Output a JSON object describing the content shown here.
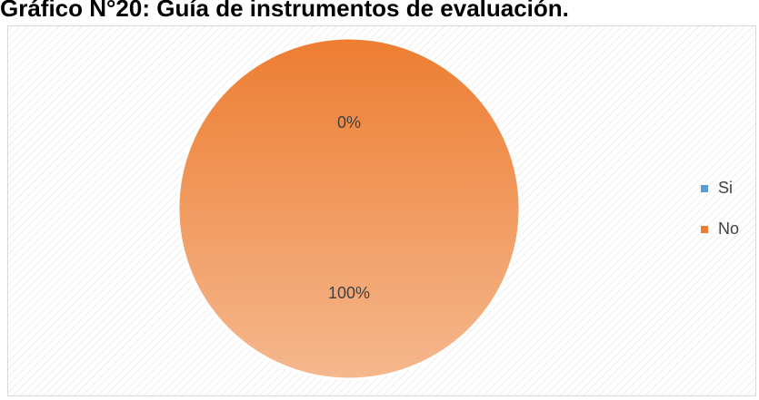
{
  "chart_data": {
    "type": "pie",
    "title": "Gráfico N°20: Guía de instrumentos de evaluación.",
    "categories": [
      "Si",
      "No"
    ],
    "values": [
      0,
      100
    ],
    "value_labels": [
      "0%",
      "100%"
    ],
    "colors": [
      "#5b9bd5",
      "#ed7d31"
    ],
    "legend": "right"
  }
}
